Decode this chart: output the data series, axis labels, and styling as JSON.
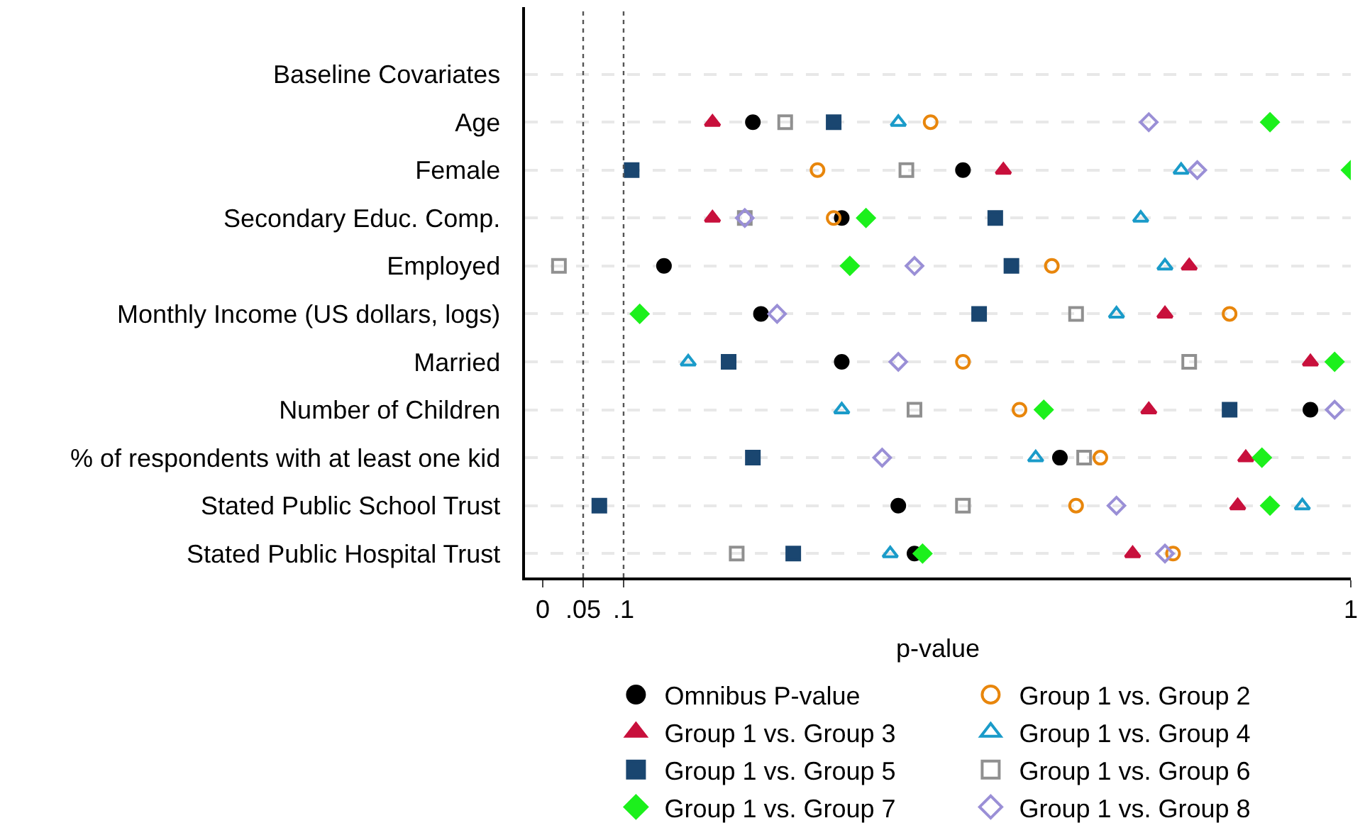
{
  "chart_data": {
    "type": "scatter",
    "orientation": "horizontal",
    "xlabel": "p-value",
    "categories": [
      "Baseline Covariates",
      "Age",
      "Female",
      "Secondary Educ. Comp.",
      "Employed",
      "Monthly Income (US dollars, logs)",
      "Married",
      "Number of Children",
      "% of respondents with at least one kid",
      "Stated Public School Trust",
      "Stated Public Hospital Trust"
    ],
    "xlim": [
      -0.022,
      1
    ],
    "xticks": [
      0,
      {
        "value": 0.05,
        "label": ".05"
      },
      {
        "value": 0.1,
        "label": ".1"
      },
      1
    ],
    "grid": "y",
    "legend": "bottom",
    "ref_lines": [
      {
        "axis": "x",
        "value": 0.05,
        "line_style": "dotted",
        "color": "#555555"
      },
      {
        "axis": "x",
        "value": 0.1,
        "line_style": "dotted",
        "color": "#555555"
      }
    ],
    "series": [
      {
        "name": "Omnibus P-value",
        "color": "#000000",
        "marker": "circle",
        "values": [
          null,
          0.26,
          0.52,
          0.37,
          0.15,
          0.27,
          0.37,
          0.95,
          0.64,
          0.44,
          0.46
        ]
      },
      {
        "name": "Group 1 vs. Group 2",
        "color": "#e8860c",
        "marker": "circle-open",
        "values": [
          null,
          0.48,
          0.34,
          0.36,
          0.63,
          0.85,
          0.52,
          0.59,
          0.69,
          0.66,
          0.78
        ]
      },
      {
        "name": "Group 1 vs. Group 3",
        "color": "#c8103c",
        "marker": "triangle",
        "values": [
          null,
          0.21,
          0.57,
          0.21,
          0.8,
          0.77,
          0.95,
          0.75,
          0.87,
          0.86,
          0.73
        ]
      },
      {
        "name": "Group 1 vs. Group 4",
        "color": "#1a9bc9",
        "marker": "triangle-open",
        "values": [
          null,
          0.44,
          0.79,
          0.74,
          0.77,
          0.71,
          0.18,
          0.37,
          0.61,
          0.94,
          0.43
        ]
      },
      {
        "name": "Group 1 vs. Group 5",
        "color": "#1a4670",
        "marker": "square",
        "values": [
          null,
          0.36,
          0.11,
          0.56,
          0.58,
          0.54,
          0.23,
          0.85,
          0.26,
          0.07,
          0.31
        ]
      },
      {
        "name": "Group 1 vs. Group 6",
        "color": "#909090",
        "marker": "square-open",
        "values": [
          null,
          0.3,
          0.45,
          0.25,
          0.02,
          0.66,
          0.8,
          0.46,
          0.67,
          0.52,
          0.24
        ]
      },
      {
        "name": "Group 1 vs. Group 7",
        "color": "#1cf01c",
        "marker": "diamond",
        "values": [
          null,
          0.9,
          1.0,
          0.4,
          0.38,
          0.12,
          0.98,
          0.62,
          0.89,
          0.9,
          0.47
        ]
      },
      {
        "name": "Group 1 vs. Group 8",
        "color": "#9a8fd6",
        "marker": "diamond-open",
        "values": [
          null,
          0.75,
          0.81,
          0.25,
          0.46,
          0.29,
          0.44,
          0.98,
          0.42,
          0.71,
          0.77
        ]
      }
    ]
  }
}
